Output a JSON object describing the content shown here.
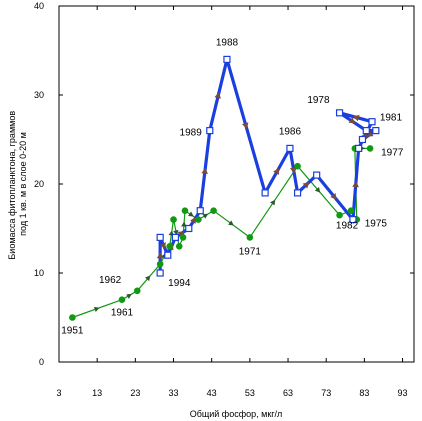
{
  "chart_data": {
    "type": "line",
    "xlabel": "Общий фосфор, мкг/л",
    "ylabel": "Биомасса фитопланктона, граммов под 1 кв. м в слое 0-20 м",
    "xlim": [
      3,
      96
    ],
    "ylim": [
      0,
      40
    ],
    "xticks": [
      3,
      13,
      23,
      33,
      43,
      53,
      63,
      73,
      83,
      93
    ],
    "yticks": [
      0,
      10,
      20,
      30,
      40
    ],
    "grid": false,
    "series": [
      {
        "marker": "filled-circle",
        "color": "#119911",
        "points": [
          {
            "x": 6.5,
            "y": 5,
            "label": "1951"
          },
          {
            "x": 19.5,
            "y": 7,
            "label": "1961"
          },
          {
            "x": 23.5,
            "y": 8,
            "label": "1962"
          },
          {
            "x": 29.5,
            "y": 11,
            "label": ""
          },
          {
            "x": 32,
            "y": 13,
            "label": ""
          },
          {
            "x": 33,
            "y": 16,
            "label": ""
          },
          {
            "x": 34.5,
            "y": 13,
            "label": ""
          },
          {
            "x": 35.5,
            "y": 14,
            "label": ""
          },
          {
            "x": 36,
            "y": 17,
            "label": ""
          },
          {
            "x": 39.5,
            "y": 16,
            "label": ""
          },
          {
            "x": 43.5,
            "y": 17,
            "label": ""
          },
          {
            "x": 53,
            "y": 14,
            "label": "1971"
          },
          {
            "x": 65.5,
            "y": 22,
            "label": ""
          },
          {
            "x": 76.5,
            "y": 16.5,
            "label": ""
          },
          {
            "x": 79.5,
            "y": 17,
            "label": "1982"
          },
          {
            "x": 81,
            "y": 16,
            "label": "1975"
          },
          {
            "x": 80.5,
            "y": 24,
            "label": ""
          },
          {
            "x": 84.5,
            "y": 24,
            "label": "1977"
          }
        ]
      },
      {
        "marker": "open-square",
        "color": "#1a3fe0",
        "points": [
          {
            "x": 29.5,
            "y": 10,
            "label": "1994"
          },
          {
            "x": 29.5,
            "y": 14,
            "label": ""
          },
          {
            "x": 31.5,
            "y": 12,
            "label": ""
          },
          {
            "x": 33.5,
            "y": 14,
            "label": ""
          },
          {
            "x": 37,
            "y": 15,
            "label": ""
          },
          {
            "x": 40,
            "y": 17,
            "label": ""
          },
          {
            "x": 42.5,
            "y": 26,
            "label": "1989"
          },
          {
            "x": 47,
            "y": 34,
            "label": "1988"
          },
          {
            "x": 57,
            "y": 19,
            "label": ""
          },
          {
            "x": 63.5,
            "y": 24,
            "label": "1986"
          },
          {
            "x": 65.5,
            "y": 19,
            "label": ""
          },
          {
            "x": 70.5,
            "y": 21,
            "label": ""
          },
          {
            "x": 80,
            "y": 16,
            "label": ""
          },
          {
            "x": 81.5,
            "y": 24,
            "label": ""
          },
          {
            "x": 85,
            "y": 27,
            "label": ""
          },
          {
            "x": 76.5,
            "y": 28,
            "label": "1978"
          },
          {
            "x": 83.5,
            "y": 26,
            "label": ""
          },
          {
            "x": 86,
            "y": 26,
            "label": "1981"
          },
          {
            "x": 82.5,
            "y": 25,
            "label": ""
          }
        ]
      }
    ]
  }
}
